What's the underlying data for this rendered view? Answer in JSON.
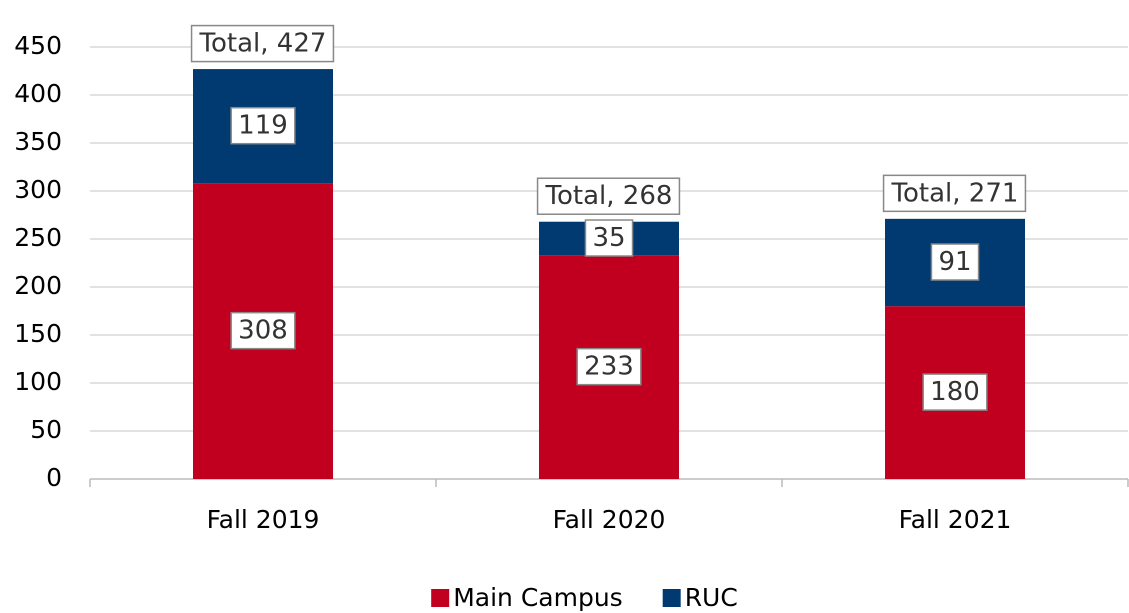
{
  "chart_data": {
    "type": "stacked_bar",
    "categories": [
      "Fall 2019",
      "Fall 2020",
      "Fall 2021"
    ],
    "series": [
      {
        "name": "Main Campus",
        "color": "#c0001e",
        "values": [
          308,
          233,
          180
        ]
      },
      {
        "name": "RUC",
        "color": "#003a70",
        "values": [
          119,
          35,
          91
        ]
      }
    ],
    "totals": [
      427,
      268,
      271
    ],
    "total_labels": [
      "Total, 427",
      "Total, 268",
      "Total, 271"
    ],
    "ylim": [
      0,
      450
    ],
    "yticks": [
      0,
      50,
      100,
      150,
      200,
      250,
      300,
      350,
      400,
      450
    ],
    "grid": true
  }
}
